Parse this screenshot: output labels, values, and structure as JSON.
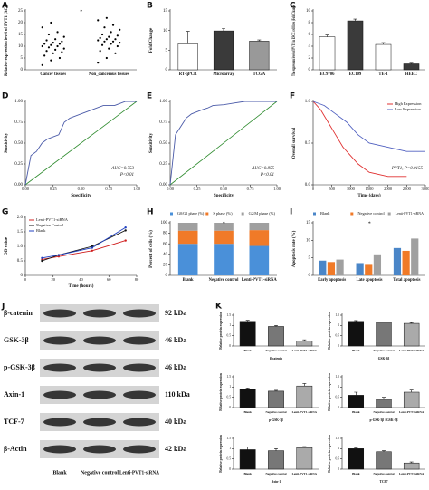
{
  "panel_labels": [
    "A",
    "B",
    "C",
    "D",
    "E",
    "F",
    "G",
    "H",
    "I",
    "J",
    "K"
  ],
  "chart_data": [
    {
      "type": "strip",
      "ylabel": "Relative expression level of PVT1 (ΔCt)",
      "categories": [
        "Cancer tissues",
        "Non_cancerous tissues"
      ],
      "values": [
        [
          2,
          4,
          5,
          6,
          7,
          7.5,
          8,
          8.5,
          9,
          9.5,
          10,
          10,
          10.5,
          11,
          11,
          11.5,
          12,
          12.5,
          13,
          14,
          15,
          16,
          18,
          20
        ],
        [
          3,
          5,
          7,
          8,
          9,
          10,
          10.5,
          11,
          11.5,
          12,
          12,
          12.5,
          13,
          13,
          13.5,
          14,
          14.5,
          15,
          16,
          17,
          18,
          19,
          21,
          22
        ]
      ],
      "color": "#000000",
      "ylim": [
        0,
        25
      ],
      "yticks": [
        0,
        5,
        10,
        15,
        20,
        25
      ],
      "annotations": [
        "*"
      ]
    },
    {
      "type": "bar",
      "ylabel": "Fold Change",
      "categories": [
        "RT-qPCR",
        "Microarray",
        "TCGA"
      ],
      "values": [
        6.6,
        9.9,
        7.3
      ],
      "errors": [
        3.2,
        0.6,
        0.3
      ],
      "colors": [
        "#ffffff",
        "#3a3a3a",
        "#999999"
      ],
      "ylim": [
        0,
        15
      ],
      "yticks": [
        0,
        5,
        10,
        15
      ]
    },
    {
      "type": "bar",
      "ylabel": "The expression level of PVT1 in ESCC cell lines (Fold Change)",
      "categories": [
        "EC9706",
        "EC109",
        "TE-1",
        "HEEC"
      ],
      "values": [
        5.6,
        8.3,
        4.3,
        1.0
      ],
      "errors": [
        0.3,
        0.3,
        0.3,
        0.1
      ],
      "colors": [
        "#ffffff",
        "#3a3a3a",
        "#ffffff",
        "#3a3a3a"
      ],
      "ylim": [
        0,
        10
      ],
      "yticks": [
        0,
        2,
        4,
        6,
        8,
        10
      ]
    },
    {
      "type": "line",
      "xlabel": "Specificity",
      "ylabel": "Sensitivity",
      "x": [
        0,
        0.05,
        0.1,
        0.15,
        0.2,
        0.3,
        0.35,
        0.4,
        0.5,
        0.6,
        0.7,
        0.8,
        0.9,
        1
      ],
      "series": [
        {
          "name": null,
          "color": "#4a5aa8",
          "values": [
            0,
            0.35,
            0.4,
            0.5,
            0.55,
            0.6,
            0.75,
            0.8,
            0.85,
            0.9,
            0.95,
            0.95,
            1,
            1
          ]
        }
      ],
      "diagonal": true,
      "reference_color": "#2e8b2e",
      "annotations": [
        "AUC=0.753",
        "P<0.01"
      ],
      "xlim": [
        0,
        1
      ],
      "xticks": [
        {
          "value": 0,
          "label": "0.00"
        },
        {
          "value": 0.25,
          "label": "0.25"
        },
        {
          "value": 0.5,
          "label": "0.50"
        },
        {
          "value": 0.75,
          "label": "0.75"
        },
        {
          "value": 1,
          "label": "1.00"
        }
      ],
      "ylim": [
        0,
        1
      ],
      "yticks": [
        {
          "value": 0,
          "label": "0.00"
        },
        {
          "value": 0.25,
          "label": "0.25"
        },
        {
          "value": 0.5,
          "label": "0.50"
        },
        {
          "value": 0.75,
          "label": "0.75"
        },
        {
          "value": 1,
          "label": "1.00"
        }
      ]
    },
    {
      "type": "line",
      "xlabel": "Specificity",
      "ylabel": "Sensitivity",
      "x": [
        0,
        0.05,
        0.1,
        0.15,
        0.2,
        0.3,
        0.35,
        0.4,
        0.5,
        0.6,
        0.7,
        0.8,
        0.9,
        1
      ],
      "series": [
        {
          "name": null,
          "color": "#4a5aa8",
          "values": [
            0,
            0.6,
            0.7,
            0.8,
            0.85,
            0.9,
            0.92,
            0.95,
            0.96,
            0.98,
            1,
            1,
            1,
            1
          ]
        }
      ],
      "diagonal": true,
      "reference_color": "#2e8b2e",
      "annotations": [
        "AUC=0.855",
        "P<0.01"
      ],
      "xlim": [
        0,
        1
      ],
      "xticks": [
        {
          "value": 0,
          "label": "0.00"
        },
        {
          "value": 0.25,
          "label": "0.25"
        },
        {
          "value": 0.5,
          "label": "0.50"
        },
        {
          "value": 0.75,
          "label": "0.75"
        },
        {
          "value": 1,
          "label": "1.00"
        }
      ],
      "ylim": [
        0,
        1
      ],
      "yticks": [
        {
          "value": 0,
          "label": "0.00"
        },
        {
          "value": 0.25,
          "label": "0.25"
        },
        {
          "value": 0.5,
          "label": "0.50"
        },
        {
          "value": 0.75,
          "label": "0.75"
        },
        {
          "value": 1,
          "label": "1.00"
        }
      ]
    },
    {
      "type": "line",
      "xlabel": "Time (days)",
      "ylabel": "Overall survival",
      "legend": "upper right",
      "series": [
        {
          "name": "High Expression",
          "color": "#e03030",
          "x": [
            0,
            200,
            400,
            600,
            800,
            1000,
            1200,
            1500,
            2000,
            2500
          ],
          "values": [
            1,
            0.9,
            0.75,
            0.6,
            0.45,
            0.35,
            0.25,
            0.15,
            0.1,
            0.1
          ]
        },
        {
          "name": "Low Expression",
          "color": "#5060c0",
          "x": [
            0,
            300,
            600,
            900,
            1200,
            1500,
            2000,
            2500,
            3000
          ],
          "values": [
            1,
            0.95,
            0.85,
            0.75,
            0.6,
            0.5,
            0.45,
            0.4,
            0.4
          ]
        }
      ],
      "annotations": [
        "PVT1, P=0.0155"
      ],
      "xlim": [
        0,
        3000
      ],
      "xticks": [
        0,
        500,
        1000,
        1500,
        2000,
        2500,
        3000
      ],
      "ylim": [
        0,
        1
      ],
      "yticks": [
        {
          "value": 0,
          "label": "0.0"
        },
        0.5,
        {
          "value": 1,
          "label": "1.0"
        }
      ]
    },
    {
      "type": "line",
      "xlabel": "Time (hours)",
      "ylabel": "OD value",
      "legend": "upper left",
      "markers": true,
      "x": [
        12,
        24,
        48,
        72
      ],
      "series": [
        {
          "name": "Lenti-PVT1-siRNA",
          "color": "#d02020",
          "values": [
            0.55,
            0.65,
            0.85,
            1.2
          ]
        },
        {
          "name": "Negative Control",
          "color": "#111111",
          "values": [
            0.5,
            0.7,
            1.0,
            1.55
          ]
        },
        {
          "name": "Blank",
          "color": "#2040c0",
          "values": [
            0.6,
            0.7,
            0.95,
            1.65
          ]
        }
      ],
      "xlim": [
        0,
        80
      ],
      "xticks": [
        0,
        20,
        40,
        60,
        80
      ],
      "ylim": [
        0,
        2
      ],
      "yticks": [
        0,
        0.5,
        {
          "value": 1,
          "label": "1.0"
        },
        1.5,
        {
          "value": 2,
          "label": "2.0"
        }
      ]
    },
    {
      "type": "stacked_bar",
      "ylabel": "Percent of cells (%)",
      "legend": "top",
      "categories": [
        "Blank",
        "Negative control",
        "Lenti-PVT1-siRNA"
      ],
      "series": [
        {
          "name": "G0/G1 phase (%)",
          "color": "#4a90d9",
          "values": [
            60,
            60,
            56
          ]
        },
        {
          "name": "S phase (%)",
          "color": "#f07a28",
          "values": [
            25,
            25,
            30
          ]
        },
        {
          "name": "G2/M phase (%)",
          "color": "#a0a0a0",
          "values": [
            15,
            15,
            14
          ]
        }
      ],
      "annotations": [
        "*"
      ],
      "ylim": [
        0,
        100
      ],
      "yticks": [
        0,
        20,
        40,
        60,
        80,
        100
      ]
    },
    {
      "type": "grouped_bar",
      "ylabel": "Apoptosis rate (%)",
      "legend": "top",
      "categories": [
        "Early apoptosis",
        "Late apoptosis",
        "Total apoptosis"
      ],
      "series": [
        {
          "name": "Blank",
          "color": "#4a86c8",
          "values": [
            4.2,
            3.5,
            7.8
          ]
        },
        {
          "name": "Negative control",
          "color": "#f07a28",
          "values": [
            3.8,
            3.0,
            7.0
          ]
        },
        {
          "name": "Lenti-PVT1-siRNA",
          "color": "#a0a0a0",
          "values": [
            4.5,
            6.0,
            10.5
          ]
        }
      ],
      "annotations": [
        "*"
      ],
      "ylim": [
        0,
        15
      ],
      "yticks": [
        0,
        5,
        10,
        15
      ]
    },
    {
      "type": "bar",
      "xlabel": "β-catenin",
      "ylabel": "Relative protein expression",
      "categories": [
        "Blank",
        "Negative control",
        "Lenti-PVT1-siRNA"
      ],
      "values": [
        1.2,
        0.95,
        0.25
      ],
      "errors": [
        0.05,
        0.05,
        0.05
      ],
      "colors": [
        "#111111",
        "#777777",
        "#aaaaaa"
      ],
      "ylim": [
        0,
        1.5
      ],
      "yticks": [
        0,
        0.5,
        1,
        1.5
      ]
    },
    {
      "type": "bar",
      "xlabel": "GSK-3β",
      "ylabel": "Relative protein expression",
      "categories": [
        "Blank",
        "Negative control",
        "Lenti-PVT1-siRNA"
      ],
      "values": [
        1.2,
        1.15,
        1.1
      ],
      "errors": [
        0.04,
        0.03,
        0.04
      ],
      "colors": [
        "#111111",
        "#777777",
        "#aaaaaa"
      ],
      "ylim": [
        0,
        1.5
      ],
      "yticks": [
        0,
        0.5,
        1,
        1.5
      ]
    },
    {
      "type": "bar",
      "xlabel": "p-GSK-3β",
      "ylabel": "Relative protein expression",
      "categories": [
        "Blank",
        "Negative control",
        "Lenti-PVT1-siRNA"
      ],
      "values": [
        0.9,
        0.8,
        1.05
      ],
      "errors": [
        0.05,
        0.04,
        0.12
      ],
      "colors": [
        "#111111",
        "#777777",
        "#aaaaaa"
      ],
      "ylim": [
        0,
        1.5
      ],
      "yticks": [
        0,
        0.5,
        1,
        1.5
      ]
    },
    {
      "type": "bar",
      "xlabel": "p-GSK-3β / GSK-3β",
      "ylabel": "Relative protein expression",
      "categories": [
        "Blank",
        "Negative control",
        "Lenti-PVT1-siRNA"
      ],
      "values": [
        0.6,
        0.4,
        0.75
      ],
      "errors": [
        0.15,
        0.1,
        0.1
      ],
      "colors": [
        "#111111",
        "#777777",
        "#aaaaaa"
      ],
      "ylim": [
        0,
        1.5
      ],
      "yticks": [
        0,
        0.5,
        1,
        1.5
      ]
    },
    {
      "type": "bar",
      "xlabel": "Axin-1",
      "ylabel": "Relative protein expression",
      "categories": [
        "Blank",
        "Negative control",
        "Lenti-PVT1-siRNA"
      ],
      "values": [
        0.95,
        0.9,
        1.05
      ],
      "errors": [
        0.12,
        0.1,
        0.05
      ],
      "colors": [
        "#111111",
        "#777777",
        "#aaaaaa"
      ],
      "ylim": [
        0,
        1.5
      ],
      "yticks": [
        0,
        0.5,
        1,
        1.5
      ]
    },
    {
      "type": "bar",
      "xlabel": "TCF7",
      "ylabel": "Relative protein expression",
      "categories": [
        "Blank",
        "Negative control",
        "Lenti-PVT1-siRNA"
      ],
      "values": [
        1.0,
        0.85,
        0.3
      ],
      "errors": [
        0.03,
        0.05,
        0.05
      ],
      "colors": [
        "#111111",
        "#777777",
        "#aaaaaa"
      ],
      "ylim": [
        0,
        1.5
      ],
      "yticks": [
        0,
        0.5,
        1,
        1.5
      ]
    }
  ],
  "blot": {
    "proteins": [
      {
        "name": "β-catenin",
        "size": "92 kDa"
      },
      {
        "name": "GSK-3β",
        "size": "46 kDa"
      },
      {
        "name": "p-GSK-3β",
        "size": "46 kDa"
      },
      {
        "name": "Axin-1",
        "size": "110 kDa"
      },
      {
        "name": "TCF-7",
        "size": "40 kDa"
      },
      {
        "name": "β-Actin",
        "size": "42 kDa"
      }
    ],
    "lanes": [
      "Blank",
      "Negative control",
      "Lenti-PVT1-siRNA"
    ]
  }
}
